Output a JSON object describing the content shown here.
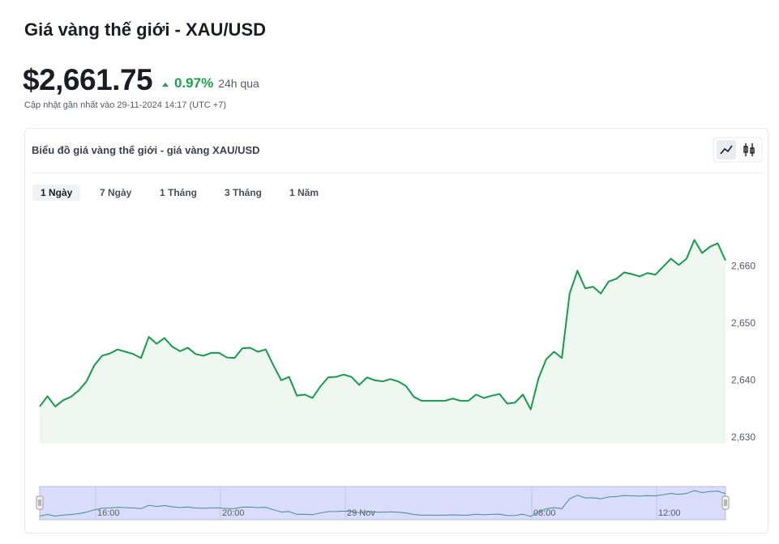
{
  "header": {
    "title": "Giá vàng thế giới - XAU/USD",
    "price": "$2,661.75",
    "change": "0.97%",
    "change_period": "24h qua",
    "updated": "Cập nhật gần nhất vào 29-11-2024 14:17 (UTC +7)"
  },
  "card": {
    "title": "Biểu đồ giá vàng thế giới - giá vàng XAU/USD",
    "tabs": [
      "1 Ngày",
      "7 Ngày",
      "1 Tháng",
      "3 Tháng",
      "1 Năm"
    ],
    "selected_tab": 0
  },
  "chart_data": {
    "type": "line",
    "color": "#169b4c",
    "fill": "#eef8f1",
    "values": [
      2635.5,
      2637.3,
      2635.5,
      2636.6,
      2637.2,
      2638.3,
      2639.9,
      2642.7,
      2644.4,
      2644.8,
      2645.5,
      2645.1,
      2644.7,
      2644.0,
      2647.7,
      2646.5,
      2647.5,
      2646.0,
      2645.2,
      2645.8,
      2644.7,
      2644.4,
      2644.9,
      2644.9,
      2644.1,
      2644.0,
      2645.7,
      2645.8,
      2645.1,
      2645.5,
      2642.7,
      2640.1,
      2640.7,
      2637.4,
      2637.6,
      2637.0,
      2639.0,
      2640.6,
      2640.7,
      2641.1,
      2640.7,
      2639.3,
      2640.6,
      2640.1,
      2639.9,
      2640.3,
      2639.9,
      2639.1,
      2637.2,
      2636.5,
      2636.5,
      2636.5,
      2636.5,
      2636.9,
      2636.5,
      2636.5,
      2637.6,
      2637.0,
      2637.4,
      2637.7,
      2636.0,
      2636.2,
      2637.6,
      2635.0,
      2640.4,
      2643.8,
      2645.1,
      2644.0,
      2655.3,
      2659.3,
      2656.2,
      2656.5,
      2655.3,
      2657.4,
      2657.9,
      2659.0,
      2658.7,
      2658.3,
      2658.9,
      2658.6,
      2660.0,
      2661.4,
      2660.3,
      2661.4,
      2664.7,
      2662.4,
      2663.5,
      2664.1,
      2661.1
    ],
    "ylim": [
      2629,
      2670
    ],
    "yticks": [
      {
        "value": 2630,
        "label": "2,630"
      },
      {
        "value": 2640,
        "label": "2,640"
      },
      {
        "value": 2650,
        "label": "2,650"
      },
      {
        "value": 2660,
        "label": "2,660"
      }
    ],
    "navigator_labels": [
      "16:00",
      "20:00",
      "29 Nov",
      "08:00",
      "12:00"
    ]
  }
}
